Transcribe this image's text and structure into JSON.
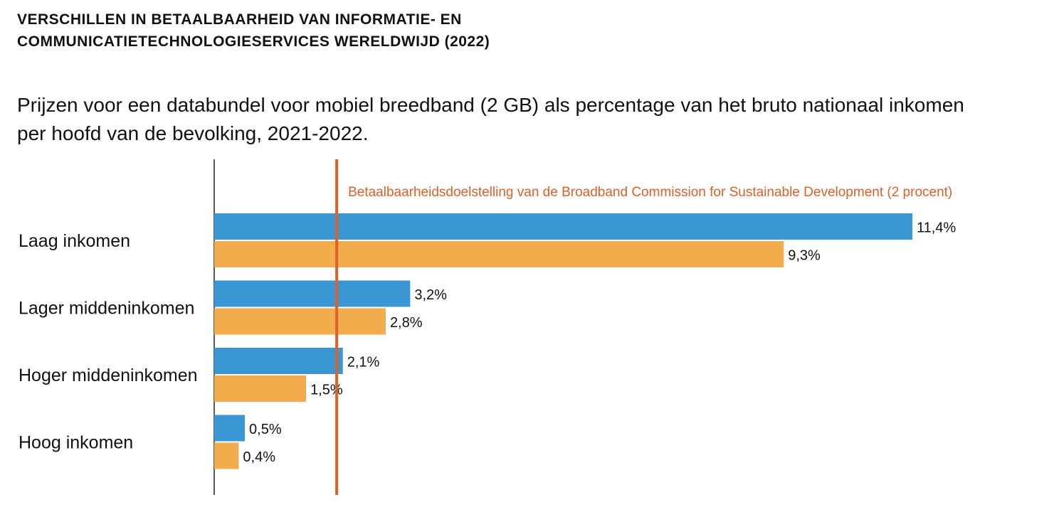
{
  "title_line1": "VERSCHILLEN IN BETAALBAARHEID VAN INFORMATIE- EN",
  "title_line2": "COMMUNICATIETECHNOLOGIESERVICES WERELDWIJD (2022)",
  "subtitle_line1": "Prijzen voor een databundel voor mobiel breedband (2 GB) als percentage van het bruto nationaal inkomen",
  "subtitle_line2": "per hoofd van de bevolking, 2021-2022.",
  "chart_data": {
    "type": "bar",
    "orientation": "horizontal",
    "categories": [
      "Laag inkomen",
      "Lager middeninkomen",
      "Hoger middeninkomen",
      "Hoog inkomen"
    ],
    "series": [
      {
        "values": [
          11.4,
          3.2,
          2.1,
          0.5
        ],
        "labels": [
          "11,4%",
          "3,2%",
          "2,1%",
          "0,5%"
        ],
        "color": "#3a97d4"
      },
      {
        "values": [
          9.3,
          2.8,
          1.5,
          0.4
        ],
        "labels": [
          "9,3%",
          "2,8%",
          "1,5%",
          "0,4%"
        ],
        "color": "#f2ac4b"
      }
    ],
    "reference_line": {
      "value": 2,
      "label": "Betaalbaarheidsdoelstelling van de Broadband Commission for Sustainable Development (2 procent)",
      "color": "#d9622b"
    },
    "xlim": [
      0,
      13.6
    ],
    "grid": false,
    "legend": "none"
  }
}
